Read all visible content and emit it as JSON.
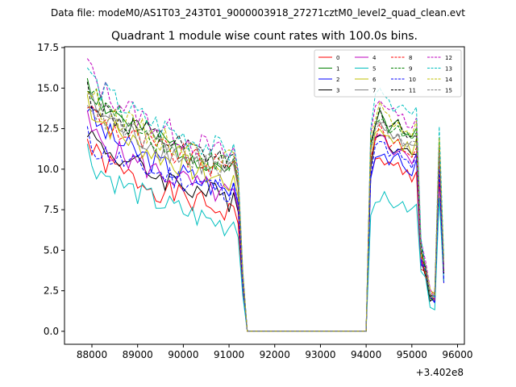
{
  "suptitle": "Data file: modeM0/AS1T03_243T01_9000003918_27271cztM0_level2_quad_clean.evt",
  "chart_data": {
    "type": "line",
    "title": "Quadrant 1 module wise count rates with 100.0s bins.",
    "xlabel": "",
    "ylabel": "",
    "x_offset_label": "+3.402e8",
    "xlim": [
      87400,
      96150
    ],
    "ylim": [
      -0.8,
      17.55
    ],
    "x_ticks": [
      88000,
      89000,
      90000,
      91000,
      92000,
      93000,
      94000,
      95000,
      96000
    ],
    "x_tick_labels": [
      "88000",
      "89000",
      "90000",
      "91000",
      "92000",
      "93000",
      "94000",
      "95000",
      "96000"
    ],
    "y_ticks": [
      0.0,
      2.5,
      5.0,
      7.5,
      10.0,
      12.5,
      15.0,
      17.5
    ],
    "y_tick_labels": [
      "0.0",
      "2.5",
      "5.0",
      "7.5",
      "10.0",
      "12.5",
      "15.0",
      "17.5"
    ],
    "legend_position": "top-right",
    "segment1_x": [
      87900,
      88000,
      88100,
      88200,
      88300,
      88400,
      88500,
      88600,
      88700,
      88800,
      88900,
      89000,
      89100,
      89200,
      89300,
      89400,
      89500,
      89600,
      89700,
      89800,
      89900,
      90000,
      90100,
      90200,
      90300,
      90400,
      90500,
      90600,
      90700,
      90800,
      90900,
      91000,
      91100,
      91200,
      91300,
      91400
    ],
    "segment2_x": [
      94000,
      94100,
      94200,
      94300,
      94400,
      94500,
      94600,
      94700,
      94800,
      94900,
      95000,
      95100,
      95200,
      95300,
      95400,
      95500,
      95600,
      95700
    ],
    "gap_x": [
      91400,
      94000
    ],
    "series": [
      {
        "name": "0",
        "color": "#ff0000",
        "dashed": false,
        "start": 11.8,
        "mid": 7.2,
        "peak": 10.8,
        "end": 4.0,
        "seed": 1
      },
      {
        "name": "1",
        "color": "#008000",
        "dashed": false,
        "start": 15.8,
        "mid": 9.8,
        "peak": 13.5,
        "end": 4.8,
        "seed": 2
      },
      {
        "name": "2",
        "color": "#0000ff",
        "dashed": false,
        "start": 14.0,
        "mid": 8.5,
        "peak": 11.2,
        "end": 4.2,
        "seed": 3
      },
      {
        "name": "3",
        "color": "#000000",
        "dashed": false,
        "start": 12.7,
        "mid": 8.0,
        "peak": 12.2,
        "end": 4.4,
        "seed": 4
      },
      {
        "name": "4",
        "color": "#bf00bf",
        "dashed": false,
        "start": 13.0,
        "mid": 8.2,
        "peak": 12.0,
        "end": 4.3,
        "seed": 5
      },
      {
        "name": "5",
        "color": "#00bfbf",
        "dashed": false,
        "start": 11.2,
        "mid": 6.3,
        "peak": 8.4,
        "end": 3.6,
        "seed": 6
      },
      {
        "name": "6",
        "color": "#bfbf00",
        "dashed": false,
        "start": 14.5,
        "mid": 9.0,
        "peak": 12.6,
        "end": 4.5,
        "seed": 7
      },
      {
        "name": "7",
        "color": "#808080",
        "dashed": false,
        "start": 14.8,
        "mid": 9.6,
        "peak": 12.8,
        "end": 4.6,
        "seed": 8
      },
      {
        "name": "8",
        "color": "#ff0000",
        "dashed": true,
        "start": 14.2,
        "mid": 9.8,
        "peak": 12.4,
        "end": 4.5,
        "seed": 9
      },
      {
        "name": "9",
        "color": "#008000",
        "dashed": true,
        "start": 15.5,
        "mid": 10.0,
        "peak": 13.2,
        "end": 4.7,
        "seed": 10
      },
      {
        "name": "10",
        "color": "#0000ff",
        "dashed": true,
        "start": 12.0,
        "mid": 8.6,
        "peak": 11.6,
        "end": 4.1,
        "seed": 11
      },
      {
        "name": "11",
        "color": "#000000",
        "dashed": true,
        "start": 15.0,
        "mid": 10.2,
        "peak": 13.4,
        "end": 4.8,
        "seed": 12
      },
      {
        "name": "12",
        "color": "#bf00bf",
        "dashed": true,
        "start": 16.7,
        "mid": 10.6,
        "peak": 14.4,
        "end": 5.0,
        "seed": 13
      },
      {
        "name": "13",
        "color": "#00bfbf",
        "dashed": true,
        "start": 16.4,
        "mid": 10.8,
        "peak": 14.9,
        "end": 5.1,
        "seed": 14
      },
      {
        "name": "14",
        "color": "#bfbf00",
        "dashed": true,
        "start": 15.2,
        "mid": 10.3,
        "peak": 13.8,
        "end": 4.9,
        "seed": 15
      },
      {
        "name": "15",
        "color": "#808080",
        "dashed": true,
        "start": 14.6,
        "mid": 9.9,
        "peak": 13.0,
        "end": 4.6,
        "seed": 16
      }
    ]
  }
}
